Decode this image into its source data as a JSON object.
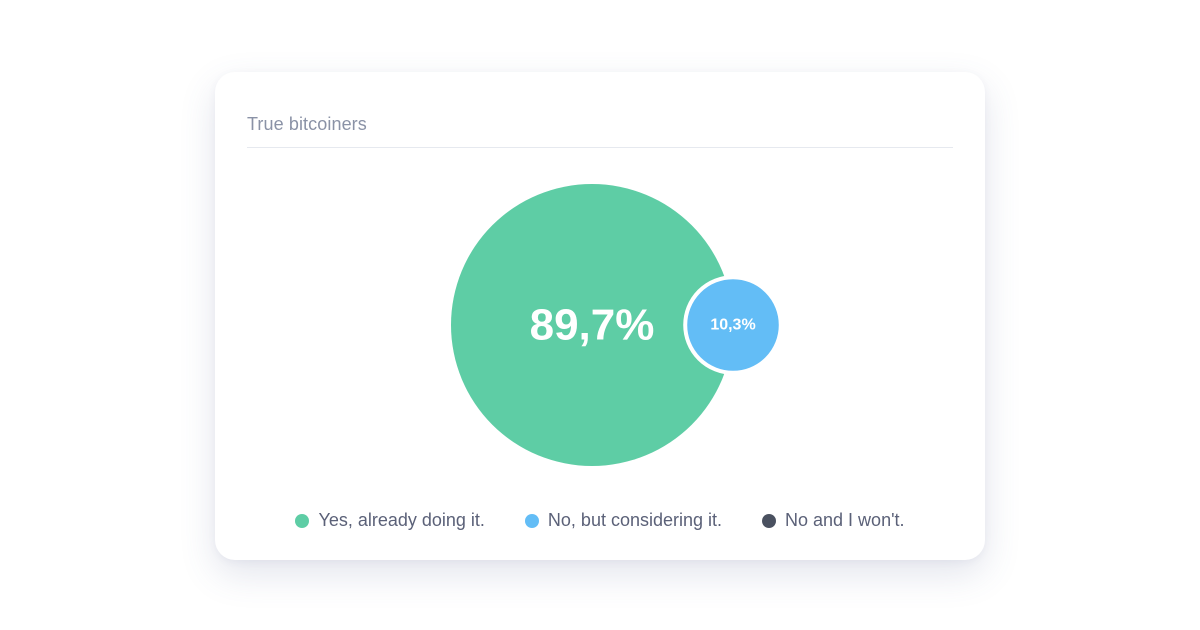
{
  "card": {
    "title": "True bitcoiners"
  },
  "chart_data": {
    "type": "bubble",
    "title": "True bitcoiners",
    "series": [
      {
        "name": "Yes, already doing it.",
        "value": 89.7,
        "label": "89,7%",
        "color": "#5ecda5"
      },
      {
        "name": "No, but considering it.",
        "value": 10.3,
        "label": "10,3%",
        "color": "#63bdf6"
      },
      {
        "name": "No and I won't.",
        "value": 0,
        "label": "",
        "color": "#4a5160"
      }
    ],
    "legend": "bottom-center"
  }
}
